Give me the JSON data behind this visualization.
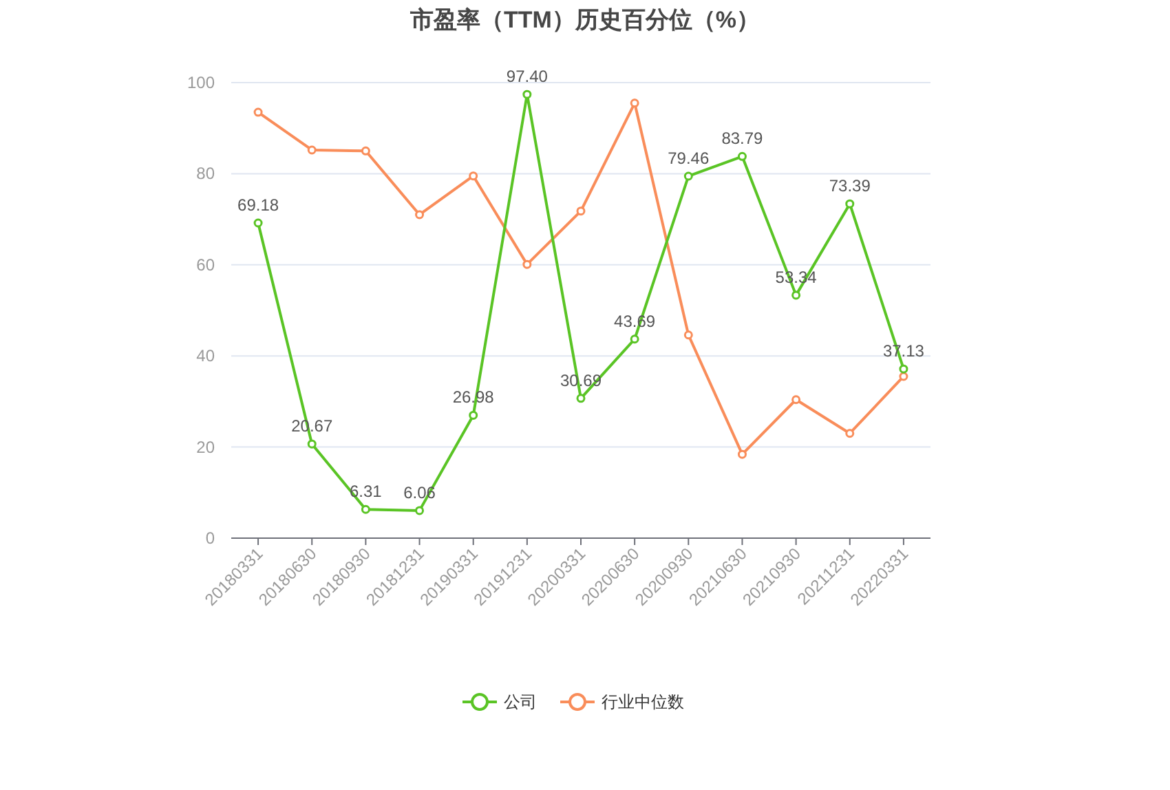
{
  "chart_data": {
    "type": "line",
    "title": "市盈率（TTM）历史百分位（%）",
    "categories": [
      "20180331",
      "20180630",
      "20180930",
      "20181231",
      "20190331",
      "20191231",
      "20200331",
      "20200630",
      "20200930",
      "20210630",
      "20210930",
      "20211231",
      "20220331"
    ],
    "series": [
      {
        "name": "公司",
        "color": "#5ac425",
        "values": [
          69.18,
          20.67,
          6.31,
          6.06,
          26.98,
          97.4,
          30.69,
          43.69,
          79.46,
          83.79,
          53.34,
          73.39,
          37.13
        ],
        "value_labels": [
          "69.18",
          "20.67",
          "6.31",
          "6.06",
          "26.98",
          "97.40",
          "30.69",
          "43.69",
          "79.46",
          "83.79",
          "53.34",
          "73.39",
          "37.13"
        ]
      },
      {
        "name": "行业中位数",
        "color": "#f98d5a",
        "values": [
          93.5,
          85.2,
          85.0,
          71.0,
          79.5,
          60.1,
          71.8,
          95.5,
          44.6,
          18.4,
          30.4,
          23.0,
          35.5
        ]
      }
    ],
    "ylim": [
      0,
      100
    ],
    "yticks": [
      0,
      20,
      40,
      60,
      80,
      100
    ],
    "grid": "y",
    "legend": "bottom",
    "marker": "circle",
    "line_style": "solid"
  }
}
